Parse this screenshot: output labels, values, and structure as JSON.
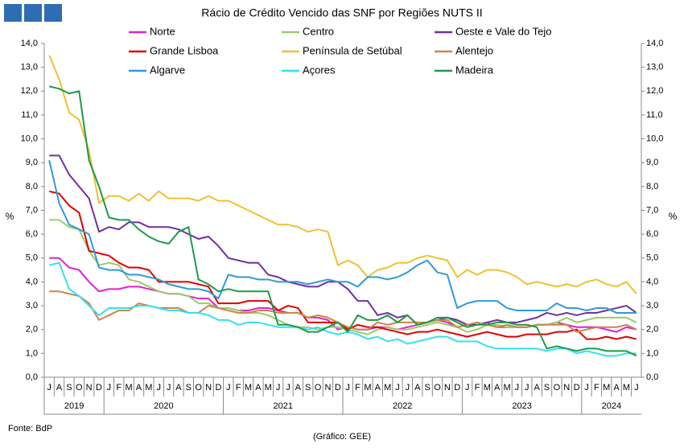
{
  "chart_data": {
    "type": "line",
    "title": "Rácio de Crédito Vencido das SNF por Regiões NUTS II",
    "ylabel": "%",
    "source": "Fonte: BdP",
    "credit": "(Gráfico: GEE)",
    "groups": [
      {
        "label": "2019",
        "categories": [
          "J",
          "A",
          "S",
          "O",
          "N",
          "D"
        ]
      },
      {
        "label": "2020",
        "categories": [
          "J",
          "F",
          "M",
          "A",
          "M",
          "J",
          "J",
          "A",
          "S",
          "O",
          "N",
          "D"
        ]
      },
      {
        "label": "2021",
        "categories": [
          "J",
          "F",
          "M",
          "A",
          "M",
          "J",
          "J",
          "A",
          "S",
          "O",
          "N",
          "D"
        ]
      },
      {
        "label": "2022",
        "categories": [
          "J",
          "F",
          "M",
          "A",
          "M",
          "J",
          "J",
          "A",
          "S",
          "O",
          "N",
          "D"
        ]
      },
      {
        "label": "2023",
        "categories": [
          "J",
          "F",
          "M",
          "A",
          "M",
          "J",
          "J",
          "A",
          "S",
          "O",
          "N",
          "D"
        ]
      },
      {
        "label": "2024",
        "categories": [
          "J",
          "F",
          "M",
          "A",
          "M",
          "J"
        ]
      }
    ],
    "ylim": [
      0,
      14
    ],
    "yticks": [
      {
        "value": 0,
        "label": "0,0"
      },
      {
        "value": 1,
        "label": "1,0"
      },
      {
        "value": 2,
        "label": "2,0"
      },
      {
        "value": 3,
        "label": "3,0"
      },
      {
        "value": 4,
        "label": "4,0"
      },
      {
        "value": 5,
        "label": "5,0"
      },
      {
        "value": 6,
        "label": "6,0"
      },
      {
        "value": 7,
        "label": "7,0"
      },
      {
        "value": 8,
        "label": "8,0"
      },
      {
        "value": 9,
        "label": "9,0"
      },
      {
        "value": 10,
        "label": "10,0"
      },
      {
        "value": 11,
        "label": "11,0"
      },
      {
        "value": 12,
        "label": "12,0"
      },
      {
        "value": 13,
        "label": "13,0"
      },
      {
        "value": 14,
        "label": "14,0"
      }
    ],
    "grid": false,
    "series": [
      {
        "name": "Norte",
        "color": "#e020d0",
        "values": [
          5.0,
          5.0,
          4.6,
          4.5,
          4.0,
          3.6,
          3.7,
          3.7,
          3.8,
          3.8,
          3.7,
          3.6,
          3.5,
          3.5,
          3.4,
          3.3,
          3.3,
          2.9,
          2.9,
          2.8,
          2.8,
          2.9,
          2.9,
          2.8,
          2.7,
          2.7,
          2.5,
          2.5,
          2.4,
          2.0,
          2.1,
          2.0,
          2.0,
          2.1,
          2.1,
          2.0,
          2.1,
          2.2,
          2.3,
          2.4,
          2.3,
          2.1,
          2.2,
          2.2,
          2.3,
          2.1,
          2.1,
          2.1,
          2.1,
          2.2,
          2.2,
          2.3,
          2.2,
          2.1,
          2.1,
          2.1,
          2.0,
          1.9,
          2.1,
          2.0
        ]
      },
      {
        "name": "Centro",
        "color": "#99cc66",
        "values": [
          6.6,
          6.6,
          6.3,
          6.2,
          5.3,
          4.7,
          4.8,
          4.7,
          4.1,
          4.0,
          3.8,
          3.6,
          3.5,
          3.5,
          3.4,
          3.1,
          3.1,
          2.9,
          2.9,
          2.8,
          2.7,
          2.7,
          2.6,
          2.4,
          2.2,
          2.1,
          2.1,
          2.0,
          2.1,
          2.1,
          2.0,
          1.9,
          1.8,
          2.0,
          2.1,
          2.0,
          2.0,
          2.1,
          2.2,
          2.3,
          2.2,
          2.1,
          1.9,
          2.0,
          2.2,
          2.2,
          2.1,
          2.1,
          2.1,
          2.2,
          2.2,
          2.3,
          2.5,
          2.3,
          2.4,
          2.5,
          2.5,
          2.5,
          2.5,
          2.3
        ]
      },
      {
        "name": "Oeste e Vale do Tejo",
        "color": "#7030a0",
        "values": [
          9.3,
          9.3,
          8.5,
          8.0,
          7.5,
          6.1,
          6.3,
          6.2,
          6.5,
          6.5,
          6.3,
          6.3,
          6.3,
          6.2,
          6.0,
          5.8,
          5.9,
          5.5,
          5.0,
          4.9,
          4.8,
          4.8,
          4.3,
          4.2,
          4.0,
          3.9,
          3.8,
          3.8,
          4.0,
          4.0,
          3.7,
          3.2,
          3.2,
          2.6,
          2.7,
          2.5,
          2.6,
          2.2,
          2.3,
          2.4,
          2.5,
          2.4,
          2.2,
          2.2,
          2.3,
          2.4,
          2.3,
          2.3,
          2.4,
          2.5,
          2.7,
          2.6,
          2.7,
          2.6,
          2.7,
          2.7,
          2.8,
          2.9,
          3.0,
          2.7
        ]
      },
      {
        "name": "Grande Lisboa",
        "color": "#e00000",
        "values": [
          7.8,
          7.7,
          7.2,
          6.9,
          5.3,
          5.2,
          5.1,
          4.8,
          4.6,
          4.6,
          4.5,
          4.0,
          4.0,
          4.0,
          4.0,
          3.9,
          3.8,
          3.1,
          3.1,
          3.1,
          3.2,
          3.2,
          3.2,
          2.8,
          3.0,
          2.9,
          2.3,
          2.3,
          2.3,
          2.3,
          2.0,
          2.2,
          2.1,
          2.1,
          2.0,
          1.9,
          1.8,
          1.9,
          1.9,
          2.0,
          1.9,
          1.8,
          1.7,
          1.8,
          1.9,
          1.8,
          1.7,
          1.7,
          1.8,
          1.8,
          1.8,
          1.9,
          1.9,
          2.0,
          1.6,
          1.6,
          1.7,
          1.6,
          1.7,
          1.6
        ]
      },
      {
        "name": "Península de Setúbal",
        "color": "#f0c030",
        "values": [
          13.5,
          12.5,
          11.1,
          10.8,
          9.5,
          7.3,
          7.6,
          7.6,
          7.4,
          7.7,
          7.4,
          7.8,
          7.5,
          7.5,
          7.5,
          7.4,
          7.6,
          7.4,
          7.4,
          7.2,
          7.0,
          6.8,
          6.6,
          6.4,
          6.4,
          6.3,
          6.1,
          6.2,
          6.1,
          4.7,
          4.9,
          4.7,
          4.2,
          4.5,
          4.6,
          4.8,
          4.8,
          5.0,
          5.1,
          5.0,
          4.9,
          4.2,
          4.5,
          4.3,
          4.5,
          4.5,
          4.4,
          4.2,
          3.9,
          4.0,
          3.9,
          3.8,
          3.9,
          3.8,
          4.0,
          4.1,
          3.9,
          3.8,
          4.0,
          3.5
        ]
      },
      {
        "name": "Alentejo",
        "color": "#c8864a",
        "values": [
          3.6,
          3.6,
          3.5,
          3.4,
          3.1,
          2.4,
          2.6,
          2.8,
          2.8,
          3.1,
          3.0,
          2.9,
          2.9,
          2.9,
          2.7,
          2.7,
          3.0,
          2.9,
          2.8,
          2.7,
          2.7,
          2.8,
          2.8,
          2.7,
          2.7,
          2.7,
          2.5,
          2.6,
          2.5,
          2.3,
          2.1,
          2.0,
          2.0,
          2.3,
          2.2,
          2.3,
          2.3,
          2.3,
          2.3,
          2.4,
          2.4,
          2.1,
          2.2,
          2.3,
          2.2,
          2.1,
          2.2,
          2.1,
          2.1,
          2.2,
          2.2,
          2.2,
          2.2,
          1.9,
          2.0,
          2.1,
          2.1,
          2.1,
          2.2,
          2.0
        ]
      },
      {
        "name": "Algarve",
        "color": "#2e9ad8",
        "values": [
          9.1,
          7.3,
          6.4,
          6.2,
          6.0,
          4.6,
          4.5,
          4.5,
          4.3,
          4.3,
          4.2,
          4.1,
          3.9,
          3.8,
          3.7,
          3.7,
          3.6,
          3.3,
          4.3,
          4.2,
          4.2,
          4.1,
          4.1,
          4.0,
          4.0,
          4.0,
          3.9,
          4.0,
          4.1,
          4.0,
          4.0,
          3.8,
          4.2,
          4.2,
          4.1,
          4.2,
          4.4,
          4.7,
          4.9,
          4.4,
          4.3,
          2.9,
          3.1,
          3.2,
          3.2,
          3.2,
          2.9,
          2.8,
          2.8,
          2.8,
          2.8,
          3.1,
          2.9,
          2.9,
          2.8,
          2.9,
          2.9,
          2.7,
          2.7,
          2.7
        ]
      },
      {
        "name": "Açores",
        "color": "#33e0f0",
        "values": [
          4.7,
          4.8,
          3.7,
          3.4,
          3.0,
          2.6,
          2.9,
          2.9,
          2.9,
          3.0,
          3.0,
          2.9,
          2.8,
          2.8,
          2.7,
          2.7,
          2.6,
          2.4,
          2.4,
          2.2,
          2.3,
          2.3,
          2.2,
          2.1,
          2.1,
          2.1,
          2.0,
          2.1,
          1.9,
          1.8,
          1.9,
          1.8,
          1.6,
          1.7,
          1.5,
          1.6,
          1.4,
          1.5,
          1.6,
          1.7,
          1.7,
          1.5,
          1.5,
          1.5,
          1.3,
          1.2,
          1.2,
          1.2,
          1.2,
          1.2,
          1.1,
          1.2,
          1.2,
          1.0,
          1.1,
          1.0,
          0.9,
          0.9,
          1.0,
          1.0
        ]
      },
      {
        "name": "Madeira",
        "color": "#1e9a48",
        "values": [
          12.2,
          12.1,
          11.9,
          12.0,
          9.1,
          8.0,
          6.7,
          6.6,
          6.6,
          6.2,
          5.9,
          5.7,
          5.6,
          6.1,
          6.3,
          4.1,
          3.9,
          3.6,
          3.7,
          3.6,
          3.6,
          3.6,
          3.6,
          2.2,
          2.2,
          2.1,
          1.9,
          1.9,
          2.1,
          2.3,
          1.9,
          2.6,
          2.4,
          2.4,
          2.6,
          2.3,
          2.6,
          2.2,
          2.3,
          2.5,
          2.5,
          2.3,
          2.1,
          2.2,
          2.2,
          2.3,
          2.3,
          2.2,
          2.2,
          2.1,
          1.2,
          1.3,
          1.2,
          1.1,
          1.2,
          1.2,
          1.1,
          1.1,
          1.1,
          0.9
        ]
      }
    ]
  }
}
